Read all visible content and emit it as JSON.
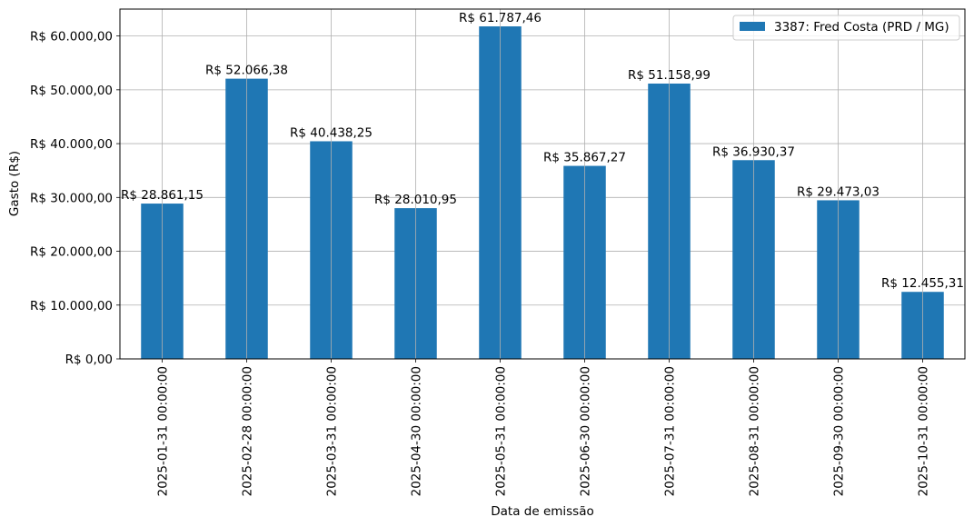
{
  "chart_data": {
    "type": "bar",
    "categories": [
      "2025-01-31 00:00:00",
      "2025-02-28 00:00:00",
      "2025-03-31 00:00:00",
      "2025-04-30 00:00:00",
      "2025-05-31 00:00:00",
      "2025-06-30 00:00:00",
      "2025-07-31 00:00:00",
      "2025-08-31 00:00:00",
      "2025-09-30 00:00:00",
      "2025-10-31 00:00:00"
    ],
    "series": [
      {
        "name": "3387: Fred Costa (PRD / MG)",
        "color": "#1f77b4",
        "values": [
          28861.15,
          52066.38,
          40438.25,
          28010.95,
          61787.46,
          35867.27,
          51158.99,
          36930.37,
          29473.03,
          12455.31
        ],
        "data_labels": [
          "R$ 28.861,15",
          "R$ 52.066,38",
          "R$ 40.438,25",
          "R$ 28.010,95",
          "R$ 61.787,46",
          "R$ 35.867,27",
          "R$ 51.158,99",
          "R$ 36.930,37",
          "R$ 29.473,03",
          "R$ 12.455,31"
        ]
      }
    ],
    "title": "",
    "xlabel": "Data de emissão",
    "ylabel": "Gasto (R$)",
    "ylim": [
      0,
      65000
    ],
    "yticks": [
      0,
      10000,
      20000,
      30000,
      40000,
      50000,
      60000
    ],
    "ytick_labels": [
      "R$ 0,00",
      "R$ 10.000,00",
      "R$ 20.000,00",
      "R$ 30.000,00",
      "R$ 40.000,00",
      "R$ 50.000,00",
      "R$ 60.000,00"
    ],
    "grid": true,
    "legend_position": "top-right"
  }
}
